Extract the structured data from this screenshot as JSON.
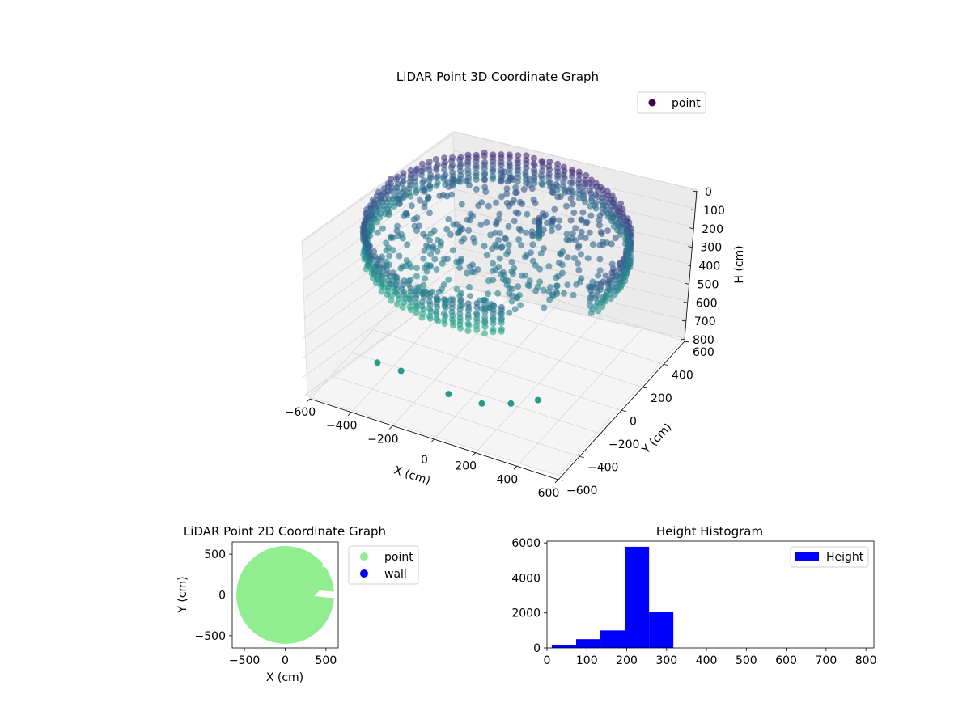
{
  "chart_data": [
    {
      "type": "scatter",
      "projection": "3d",
      "title": "LiDAR Point 3D Coordinate Graph",
      "xlabel": "X (cm)",
      "ylabel": "Y (cm)",
      "zlabel": "H (cm)",
      "xlim": [
        -600,
        600
      ],
      "ylim": [
        -600,
        600
      ],
      "zlim": [
        0,
        800
      ],
      "z_inverted": true,
      "xticks": [
        -600,
        -400,
        -200,
        0,
        200,
        400,
        600
      ],
      "yticks": [
        -600,
        -400,
        -200,
        0,
        200,
        400,
        600
      ],
      "zticks": [
        0,
        100,
        200,
        300,
        400,
        500,
        600,
        700,
        800
      ],
      "grid": true,
      "legend": {
        "placement": "upper-right",
        "entries": [
          {
            "label": "point",
            "color": "#440154"
          }
        ]
      },
      "colormap": "viridis",
      "point_groups": [
        {
          "shape": "ring-wall",
          "radius_cm": 600,
          "h_range": [
            150,
            310
          ],
          "note": "dense cylindrical wall"
        },
        {
          "shape": "floor-disc",
          "radius_cm": 550,
          "h_range": [
            200,
            260
          ]
        },
        {
          "shape": "post",
          "x": 100,
          "y": 200,
          "h_range": [
            180,
            300
          ]
        }
      ],
      "outliers": [
        {
          "x": -350,
          "y": -450,
          "h": 780
        },
        {
          "x": -200,
          "y": -520,
          "h": 720
        },
        {
          "x": 50,
          "y": -560,
          "h": 730
        },
        {
          "x": 200,
          "y": -540,
          "h": 740
        },
        {
          "x": 320,
          "y": -500,
          "h": 720
        },
        {
          "x": 420,
          "y": -440,
          "h": 700
        }
      ]
    },
    {
      "type": "scatter",
      "title": "LiDAR Point 2D Coordinate Graph",
      "xlabel": "X (cm)",
      "ylabel": "Y (cm)",
      "xlim": [
        -650,
        650
      ],
      "ylim": [
        -650,
        650
      ],
      "xticks": [
        -500,
        0,
        500
      ],
      "yticks": [
        -500,
        0,
        500
      ],
      "legend": {
        "placement": "outside-right",
        "entries": [
          {
            "label": "point",
            "color": "#90ee90"
          },
          {
            "label": "wall",
            "color": "#0000ff"
          }
        ]
      },
      "point_region": {
        "shape": "disc",
        "center": [
          0,
          0
        ],
        "radius_cm": 600
      },
      "wall_points": []
    },
    {
      "type": "bar",
      "title": "Height Histogram",
      "xlim": [
        0,
        820
      ],
      "ylim": [
        0,
        6100
      ],
      "xticks": [
        0,
        100,
        200,
        300,
        400,
        500,
        600,
        700,
        800
      ],
      "yticks": [
        0,
        2000,
        4000,
        6000
      ],
      "legend": {
        "placement": "upper-right",
        "entries": [
          {
            "label": "Height",
            "color": "#0000ff"
          }
        ]
      },
      "series": [
        {
          "name": "Height",
          "color": "#0000ff",
          "bins": [
            {
              "x0": 12,
              "x1": 73,
              "count": 150
            },
            {
              "x0": 73,
              "x1": 134,
              "count": 500
            },
            {
              "x0": 134,
              "x1": 195,
              "count": 1000
            },
            {
              "x0": 195,
              "x1": 256,
              "count": 5780
            },
            {
              "x0": 256,
              "x1": 317,
              "count": 2080
            }
          ]
        }
      ]
    }
  ]
}
